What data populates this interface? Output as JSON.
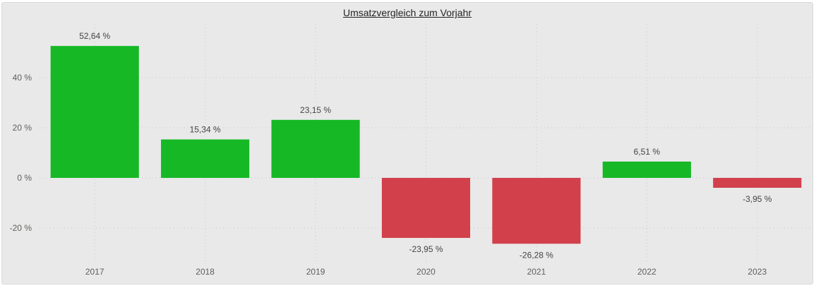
{
  "chart_data": {
    "type": "bar",
    "title": "Umsatzvergleich zum Vorjahr",
    "categories": [
      "2017",
      "2018",
      "2019",
      "2020",
      "2021",
      "2022",
      "2023"
    ],
    "values": [
      52.64,
      15.34,
      23.15,
      -23.95,
      -26.28,
      6.51,
      -3.95
    ],
    "data_labels": [
      "52,64 %",
      "15,34 %",
      "23,15 %",
      "-23,95 %",
      "-26,28 %",
      "6,51 %",
      "-3,95 %"
    ],
    "y_ticks": [
      -20,
      0,
      20,
      40
    ],
    "y_tick_labels": [
      "-20 %",
      "0 %",
      "20 %",
      "40 %"
    ],
    "ylim": [
      -34,
      60
    ],
    "xlabel": "",
    "ylabel": "",
    "grid": true,
    "colors": {
      "positive": "#16b826",
      "negative": "#d1404b",
      "grid": "#c8c8c8"
    }
  }
}
